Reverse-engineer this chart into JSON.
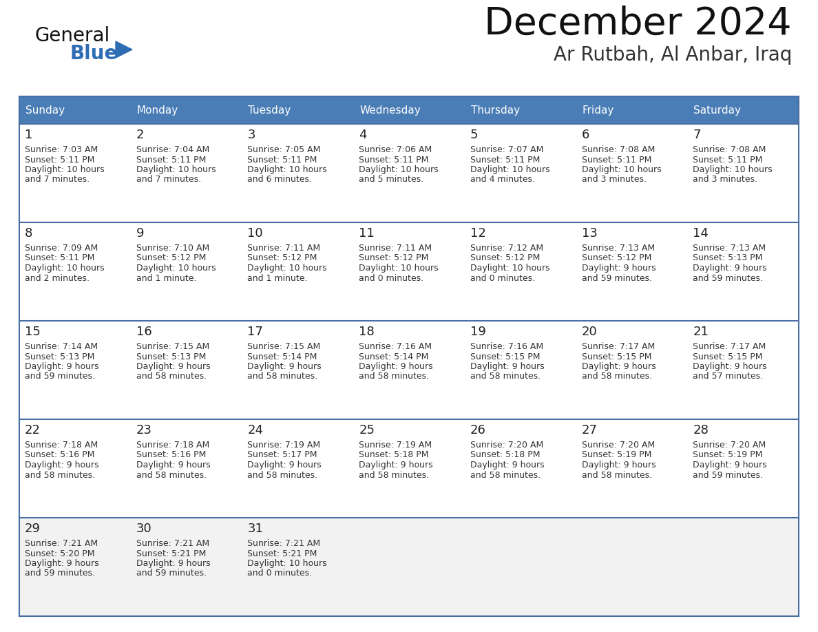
{
  "title": "December 2024",
  "subtitle": "Ar Rutbah, Al Anbar, Iraq",
  "header_bg": "#4a7db5",
  "header_text": "#ffffff",
  "day_names": [
    "Sunday",
    "Monday",
    "Tuesday",
    "Wednesday",
    "Thursday",
    "Friday",
    "Saturday"
  ],
  "row_bg_white": "#ffffff",
  "row_bg_light": "#f2f2f2",
  "cell_border_color": "#4a6fa5",
  "day_num_color": "#222222",
  "day_text_color": "#333333",
  "title_color": "#111111",
  "subtitle_color": "#333333",
  "blue_color": "#2e6db4",
  "logo_general_color": "#111111",
  "days": [
    {
      "day": 1,
      "row": 0,
      "col": 0,
      "sunrise": "7:03 AM",
      "sunset": "5:11 PM",
      "daylight_line1": "Daylight: 10 hours",
      "daylight_line2": "and 7 minutes."
    },
    {
      "day": 2,
      "row": 0,
      "col": 1,
      "sunrise": "7:04 AM",
      "sunset": "5:11 PM",
      "daylight_line1": "Daylight: 10 hours",
      "daylight_line2": "and 7 minutes."
    },
    {
      "day": 3,
      "row": 0,
      "col": 2,
      "sunrise": "7:05 AM",
      "sunset": "5:11 PM",
      "daylight_line1": "Daylight: 10 hours",
      "daylight_line2": "and 6 minutes."
    },
    {
      "day": 4,
      "row": 0,
      "col": 3,
      "sunrise": "7:06 AM",
      "sunset": "5:11 PM",
      "daylight_line1": "Daylight: 10 hours",
      "daylight_line2": "and 5 minutes."
    },
    {
      "day": 5,
      "row": 0,
      "col": 4,
      "sunrise": "7:07 AM",
      "sunset": "5:11 PM",
      "daylight_line1": "Daylight: 10 hours",
      "daylight_line2": "and 4 minutes."
    },
    {
      "day": 6,
      "row": 0,
      "col": 5,
      "sunrise": "7:08 AM",
      "sunset": "5:11 PM",
      "daylight_line1": "Daylight: 10 hours",
      "daylight_line2": "and 3 minutes."
    },
    {
      "day": 7,
      "row": 0,
      "col": 6,
      "sunrise": "7:08 AM",
      "sunset": "5:11 PM",
      "daylight_line1": "Daylight: 10 hours",
      "daylight_line2": "and 3 minutes."
    },
    {
      "day": 8,
      "row": 1,
      "col": 0,
      "sunrise": "7:09 AM",
      "sunset": "5:11 PM",
      "daylight_line1": "Daylight: 10 hours",
      "daylight_line2": "and 2 minutes."
    },
    {
      "day": 9,
      "row": 1,
      "col": 1,
      "sunrise": "7:10 AM",
      "sunset": "5:12 PM",
      "daylight_line1": "Daylight: 10 hours",
      "daylight_line2": "and 1 minute."
    },
    {
      "day": 10,
      "row": 1,
      "col": 2,
      "sunrise": "7:11 AM",
      "sunset": "5:12 PM",
      "daylight_line1": "Daylight: 10 hours",
      "daylight_line2": "and 1 minute."
    },
    {
      "day": 11,
      "row": 1,
      "col": 3,
      "sunrise": "7:11 AM",
      "sunset": "5:12 PM",
      "daylight_line1": "Daylight: 10 hours",
      "daylight_line2": "and 0 minutes."
    },
    {
      "day": 12,
      "row": 1,
      "col": 4,
      "sunrise": "7:12 AM",
      "sunset": "5:12 PM",
      "daylight_line1": "Daylight: 10 hours",
      "daylight_line2": "and 0 minutes."
    },
    {
      "day": 13,
      "row": 1,
      "col": 5,
      "sunrise": "7:13 AM",
      "sunset": "5:12 PM",
      "daylight_line1": "Daylight: 9 hours",
      "daylight_line2": "and 59 minutes."
    },
    {
      "day": 14,
      "row": 1,
      "col": 6,
      "sunrise": "7:13 AM",
      "sunset": "5:13 PM",
      "daylight_line1": "Daylight: 9 hours",
      "daylight_line2": "and 59 minutes."
    },
    {
      "day": 15,
      "row": 2,
      "col": 0,
      "sunrise": "7:14 AM",
      "sunset": "5:13 PM",
      "daylight_line1": "Daylight: 9 hours",
      "daylight_line2": "and 59 minutes."
    },
    {
      "day": 16,
      "row": 2,
      "col": 1,
      "sunrise": "7:15 AM",
      "sunset": "5:13 PM",
      "daylight_line1": "Daylight: 9 hours",
      "daylight_line2": "and 58 minutes."
    },
    {
      "day": 17,
      "row": 2,
      "col": 2,
      "sunrise": "7:15 AM",
      "sunset": "5:14 PM",
      "daylight_line1": "Daylight: 9 hours",
      "daylight_line2": "and 58 minutes."
    },
    {
      "day": 18,
      "row": 2,
      "col": 3,
      "sunrise": "7:16 AM",
      "sunset": "5:14 PM",
      "daylight_line1": "Daylight: 9 hours",
      "daylight_line2": "and 58 minutes."
    },
    {
      "day": 19,
      "row": 2,
      "col": 4,
      "sunrise": "7:16 AM",
      "sunset": "5:15 PM",
      "daylight_line1": "Daylight: 9 hours",
      "daylight_line2": "and 58 minutes."
    },
    {
      "day": 20,
      "row": 2,
      "col": 5,
      "sunrise": "7:17 AM",
      "sunset": "5:15 PM",
      "daylight_line1": "Daylight: 9 hours",
      "daylight_line2": "and 58 minutes."
    },
    {
      "day": 21,
      "row": 2,
      "col": 6,
      "sunrise": "7:17 AM",
      "sunset": "5:15 PM",
      "daylight_line1": "Daylight: 9 hours",
      "daylight_line2": "and 57 minutes."
    },
    {
      "day": 22,
      "row": 3,
      "col": 0,
      "sunrise": "7:18 AM",
      "sunset": "5:16 PM",
      "daylight_line1": "Daylight: 9 hours",
      "daylight_line2": "and 58 minutes."
    },
    {
      "day": 23,
      "row": 3,
      "col": 1,
      "sunrise": "7:18 AM",
      "sunset": "5:16 PM",
      "daylight_line1": "Daylight: 9 hours",
      "daylight_line2": "and 58 minutes."
    },
    {
      "day": 24,
      "row": 3,
      "col": 2,
      "sunrise": "7:19 AM",
      "sunset": "5:17 PM",
      "daylight_line1": "Daylight: 9 hours",
      "daylight_line2": "and 58 minutes."
    },
    {
      "day": 25,
      "row": 3,
      "col": 3,
      "sunrise": "7:19 AM",
      "sunset": "5:18 PM",
      "daylight_line1": "Daylight: 9 hours",
      "daylight_line2": "and 58 minutes."
    },
    {
      "day": 26,
      "row": 3,
      "col": 4,
      "sunrise": "7:20 AM",
      "sunset": "5:18 PM",
      "daylight_line1": "Daylight: 9 hours",
      "daylight_line2": "and 58 minutes."
    },
    {
      "day": 27,
      "row": 3,
      "col": 5,
      "sunrise": "7:20 AM",
      "sunset": "5:19 PM",
      "daylight_line1": "Daylight: 9 hours",
      "daylight_line2": "and 58 minutes."
    },
    {
      "day": 28,
      "row": 3,
      "col": 6,
      "sunrise": "7:20 AM",
      "sunset": "5:19 PM",
      "daylight_line1": "Daylight: 9 hours",
      "daylight_line2": "and 59 minutes."
    },
    {
      "day": 29,
      "row": 4,
      "col": 0,
      "sunrise": "7:21 AM",
      "sunset": "5:20 PM",
      "daylight_line1": "Daylight: 9 hours",
      "daylight_line2": "and 59 minutes."
    },
    {
      "day": 30,
      "row": 4,
      "col": 1,
      "sunrise": "7:21 AM",
      "sunset": "5:21 PM",
      "daylight_line1": "Daylight: 9 hours",
      "daylight_line2": "and 59 minutes."
    },
    {
      "day": 31,
      "row": 4,
      "col": 2,
      "sunrise": "7:21 AM",
      "sunset": "5:21 PM",
      "daylight_line1": "Daylight: 10 hours",
      "daylight_line2": "and 0 minutes."
    }
  ]
}
